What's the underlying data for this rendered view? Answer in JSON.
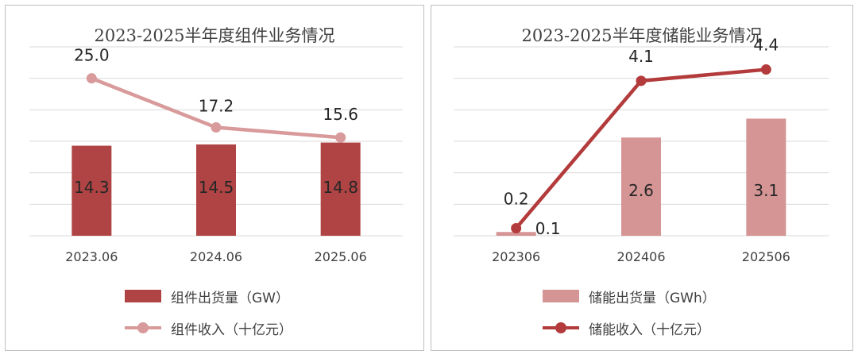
{
  "colors": {
    "bar_dark": "#b04444",
    "bar_light": "#d69595",
    "line_light": "#d89a9a",
    "line_dark": "#b33b3b",
    "grid": "#d9d9d9",
    "text": "#404040"
  },
  "chart_data": [
    {
      "type": "bar",
      "title": "2023-2025半年度组件业务情况",
      "categories": [
        "2023.06",
        "2024.06",
        "2025.06"
      ],
      "series": [
        {
          "name": "组件出货量（GW）",
          "type": "bar",
          "values": [
            14.3,
            14.5,
            14.8
          ],
          "labels": [
            "14.3",
            "14.5",
            "14.8"
          ],
          "color": "#b04444"
        },
        {
          "name": "组件收入（十亿元）",
          "type": "line",
          "values": [
            25.0,
            17.2,
            15.6
          ],
          "labels": [
            "25.0",
            "17.2",
            "15.6"
          ],
          "color": "#d89a9a"
        }
      ],
      "ylim": [
        0,
        30
      ],
      "grid": true,
      "legend": "bottom"
    },
    {
      "type": "bar",
      "title": "2023-2025半年度储能业务情况",
      "categories": [
        "202306",
        "202406",
        "202506"
      ],
      "series": [
        {
          "name": "储能出货量（GWh）",
          "type": "bar",
          "values": [
            0.1,
            2.6,
            3.1
          ],
          "labels": [
            "0.1",
            "2.6",
            "3.1"
          ],
          "color": "#d69595"
        },
        {
          "name": "储能收入（十亿元）",
          "type": "line",
          "values": [
            0.2,
            4.1,
            4.4
          ],
          "labels": [
            "0.2",
            "4.1",
            "4.4"
          ],
          "color": "#b33b3b"
        }
      ],
      "ylim": [
        0,
        5
      ],
      "grid": true,
      "legend": "bottom"
    }
  ]
}
